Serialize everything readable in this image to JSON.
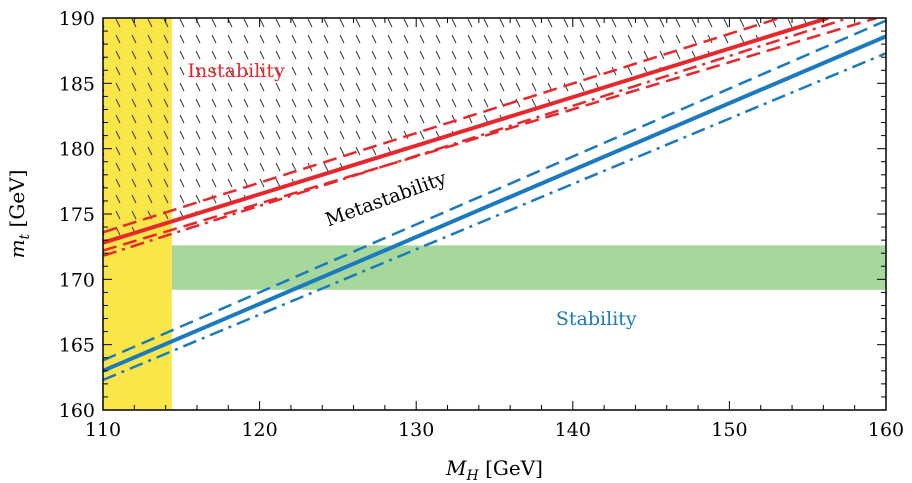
{
  "chart_data": {
    "type": "line",
    "xlabel": {
      "main": "M",
      "sub": "H",
      "unit": "[GeV]"
    },
    "ylabel": {
      "main": "m",
      "sub": "t",
      "unit": "[GeV]"
    },
    "xlim": [
      110,
      160
    ],
    "ylim": [
      160,
      190
    ],
    "x_ticks": [
      110,
      120,
      130,
      140,
      150,
      160
    ],
    "y_ticks": [
      160,
      165,
      170,
      175,
      180,
      185,
      190
    ],
    "grid": false,
    "colors": {
      "red": "#e8272c",
      "blue": "#1a79bf",
      "yellow": "#fbe64a",
      "green": "#a5d89a",
      "hatch": "#333333"
    },
    "bands": [
      {
        "kind": "vertical",
        "x_range": [
          110,
          114.4
        ],
        "color": "yellow"
      },
      {
        "kind": "horizontal",
        "y_range": [
          169.2,
          172.6
        ],
        "x_range": [
          114.4,
          160
        ],
        "color": "green"
      }
    ],
    "hatched_region": {
      "label_ref": "instability",
      "above_series": "instability-central"
    },
    "series": [
      {
        "id": "instability-central",
        "color": "red",
        "style": "solid",
        "x": [
          110,
          156.3
        ],
        "y": [
          172.8,
          190
        ]
      },
      {
        "id": "instability-upper",
        "color": "red",
        "style": "dashed",
        "x": [
          110,
          153.2
        ],
        "y": [
          173.6,
          190
        ]
      },
      {
        "id": "instability-lower-dash",
        "color": "red",
        "style": "dashed",
        "x": [
          110,
          159.4
        ],
        "y": [
          172.2,
          190
        ]
      },
      {
        "id": "instability-lower-dashdot",
        "color": "red",
        "style": "dashdot",
        "x": [
          110,
          157.6
        ],
        "y": [
          171.8,
          190
        ]
      },
      {
        "id": "stability-central",
        "color": "blue",
        "style": "solid",
        "x": [
          110,
          160
        ],
        "y": [
          163.0,
          188.6
        ]
      },
      {
        "id": "stability-upper",
        "color": "blue",
        "style": "dashed",
        "x": [
          110,
          160
        ],
        "y": [
          163.8,
          189.8
        ]
      },
      {
        "id": "stability-lower-dashdot",
        "color": "blue",
        "style": "dashdot",
        "x": [
          110,
          160
        ],
        "y": [
          162.3,
          187.3
        ]
      }
    ],
    "annotations": [
      {
        "id": "instability",
        "text": "Instability",
        "x": 118.5,
        "y": 185.5,
        "color": "red",
        "rotate": 0
      },
      {
        "id": "metastability",
        "text": "Metastability",
        "x": 128.2,
        "y": 175.7,
        "color": "#000000",
        "rotate": -20
      },
      {
        "id": "stability",
        "text": "Stability",
        "x": 141.5,
        "y": 166.5,
        "color": "blue",
        "rotate": 0
      }
    ]
  }
}
